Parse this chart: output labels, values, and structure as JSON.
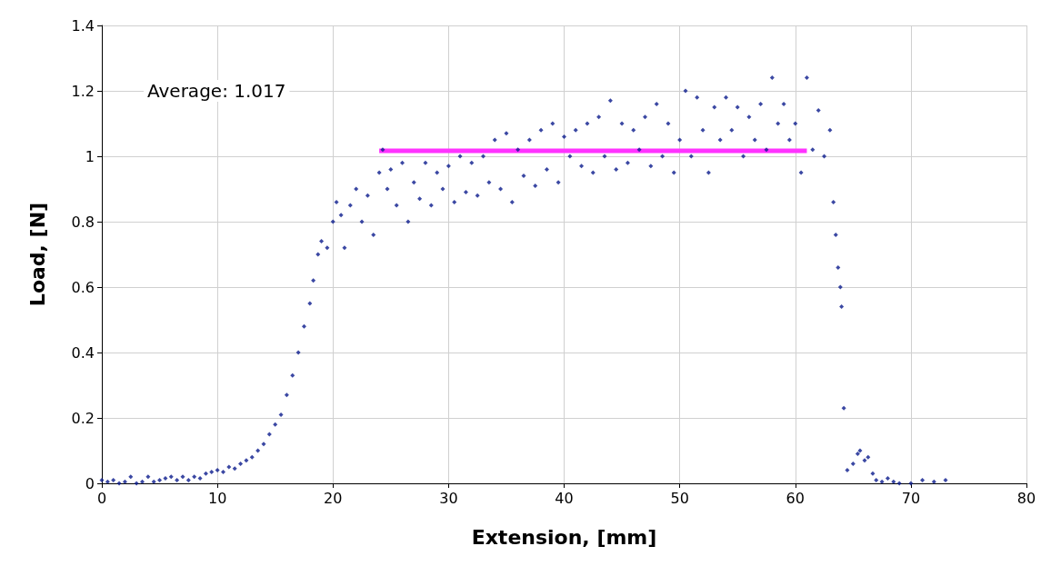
{
  "chart_data": {
    "type": "scatter",
    "xlabel": "Extension, [mm]",
    "ylabel": "Load, [N]",
    "annotations": [
      "Average: 1.017"
    ],
    "xlim": [
      0,
      80
    ],
    "xticks": [
      0,
      10,
      20,
      30,
      40,
      50,
      60,
      70,
      80
    ],
    "ylim": [
      0,
      1.4
    ],
    "yticks": [
      0,
      0.2,
      0.4,
      0.6,
      0.8,
      1,
      1.2,
      1.4
    ],
    "grid": true,
    "marker": "diamond",
    "series": [
      {
        "color": "#0a1a8c",
        "x": [
          0,
          0.5,
          1,
          1.5,
          2,
          2.5,
          3,
          3.5,
          4,
          4.5,
          5,
          5.5,
          6,
          6.5,
          7,
          7.5,
          8,
          8.5,
          9,
          9.5,
          10,
          10.5,
          11,
          11.5,
          12,
          12.5,
          13,
          13.5,
          14,
          14.5,
          15,
          15.5,
          16,
          16.5,
          17,
          17.5,
          18,
          18.3,
          18.7,
          19,
          19.5,
          20,
          20.3,
          20.7,
          21,
          21.5,
          22,
          22.5,
          23,
          23.5,
          24,
          24.3,
          24.7,
          25,
          25.5,
          26,
          26.5,
          27,
          27.5,
          28,
          28.5,
          29,
          29.5,
          30,
          30.5,
          31,
          31.5,
          32,
          32.5,
          33,
          33.5,
          34,
          34.5,
          35,
          35.5,
          36,
          36.5,
          37,
          37.5,
          38,
          38.5,
          39,
          39.5,
          40,
          40.5,
          41,
          41.5,
          42,
          42.5,
          43,
          43.5,
          44,
          44.5,
          45,
          45.5,
          46,
          46.5,
          47,
          47.5,
          48,
          48.5,
          49,
          49.5,
          50,
          50.5,
          51,
          51.5,
          52,
          52.5,
          53,
          53.5,
          54,
          54.5,
          55,
          55.5,
          56,
          56.5,
          57,
          57.5,
          58,
          58.5,
          59,
          59.5,
          60,
          60.5,
          61,
          61.5,
          62,
          62.5,
          63,
          63.3,
          63.5,
          63.7,
          63.9,
          64,
          64.2,
          64.5,
          65,
          65.4,
          65.6,
          66,
          66.3,
          66.7,
          67,
          67.5,
          68,
          68.5,
          69,
          70,
          71,
          72,
          73
        ],
        "values": [
          0.01,
          0.005,
          0.01,
          0,
          0.005,
          0.02,
          0,
          0.005,
          0.02,
          0.005,
          0.01,
          0.015,
          0.02,
          0.01,
          0.02,
          0.01,
          0.02,
          0.015,
          0.03,
          0.035,
          0.04,
          0.035,
          0.05,
          0.045,
          0.06,
          0.07,
          0.08,
          0.1,
          0.12,
          0.15,
          0.18,
          0.21,
          0.27,
          0.33,
          0.4,
          0.48,
          0.55,
          0.62,
          0.7,
          0.74,
          0.72,
          0.8,
          0.86,
          0.82,
          0.72,
          0.85,
          0.9,
          0.8,
          0.88,
          0.76,
          0.95,
          1.02,
          0.9,
          0.96,
          0.85,
          0.98,
          0.8,
          0.92,
          0.87,
          0.98,
          0.85,
          0.95,
          0.9,
          0.97,
          0.86,
          1,
          0.89,
          0.98,
          0.88,
          1,
          0.92,
          1.05,
          0.9,
          1.07,
          0.86,
          1.02,
          0.94,
          1.05,
          0.91,
          1.08,
          0.96,
          1.1,
          0.92,
          1.06,
          1,
          1.08,
          0.97,
          1.1,
          0.95,
          1.12,
          1,
          1.17,
          0.96,
          1.1,
          0.98,
          1.08,
          1.02,
          1.12,
          0.97,
          1.16,
          1,
          1.1,
          0.95,
          1.05,
          1.2,
          1,
          1.18,
          1.08,
          0.95,
          1.15,
          1.05,
          1.18,
          1.08,
          1.15,
          1,
          1.12,
          1.05,
          1.16,
          1.02,
          1.24,
          1.1,
          1.16,
          1.05,
          1.1,
          0.95,
          1.24,
          1.02,
          1.14,
          1,
          1.08,
          0.86,
          0.76,
          0.66,
          0.6,
          0.54,
          0.23,
          0.04,
          0.06,
          0.09,
          0.1,
          0.07,
          0.08,
          0.03,
          0.01,
          0.005,
          0.015,
          0.005,
          0,
          0,
          0.01,
          0.005,
          0.01
        ]
      },
      {
        "type": "line",
        "marker": "none",
        "color": "#ff33ff",
        "x": [
          24,
          61
        ],
        "values": [
          1.017,
          1.017
        ]
      }
    ]
  }
}
